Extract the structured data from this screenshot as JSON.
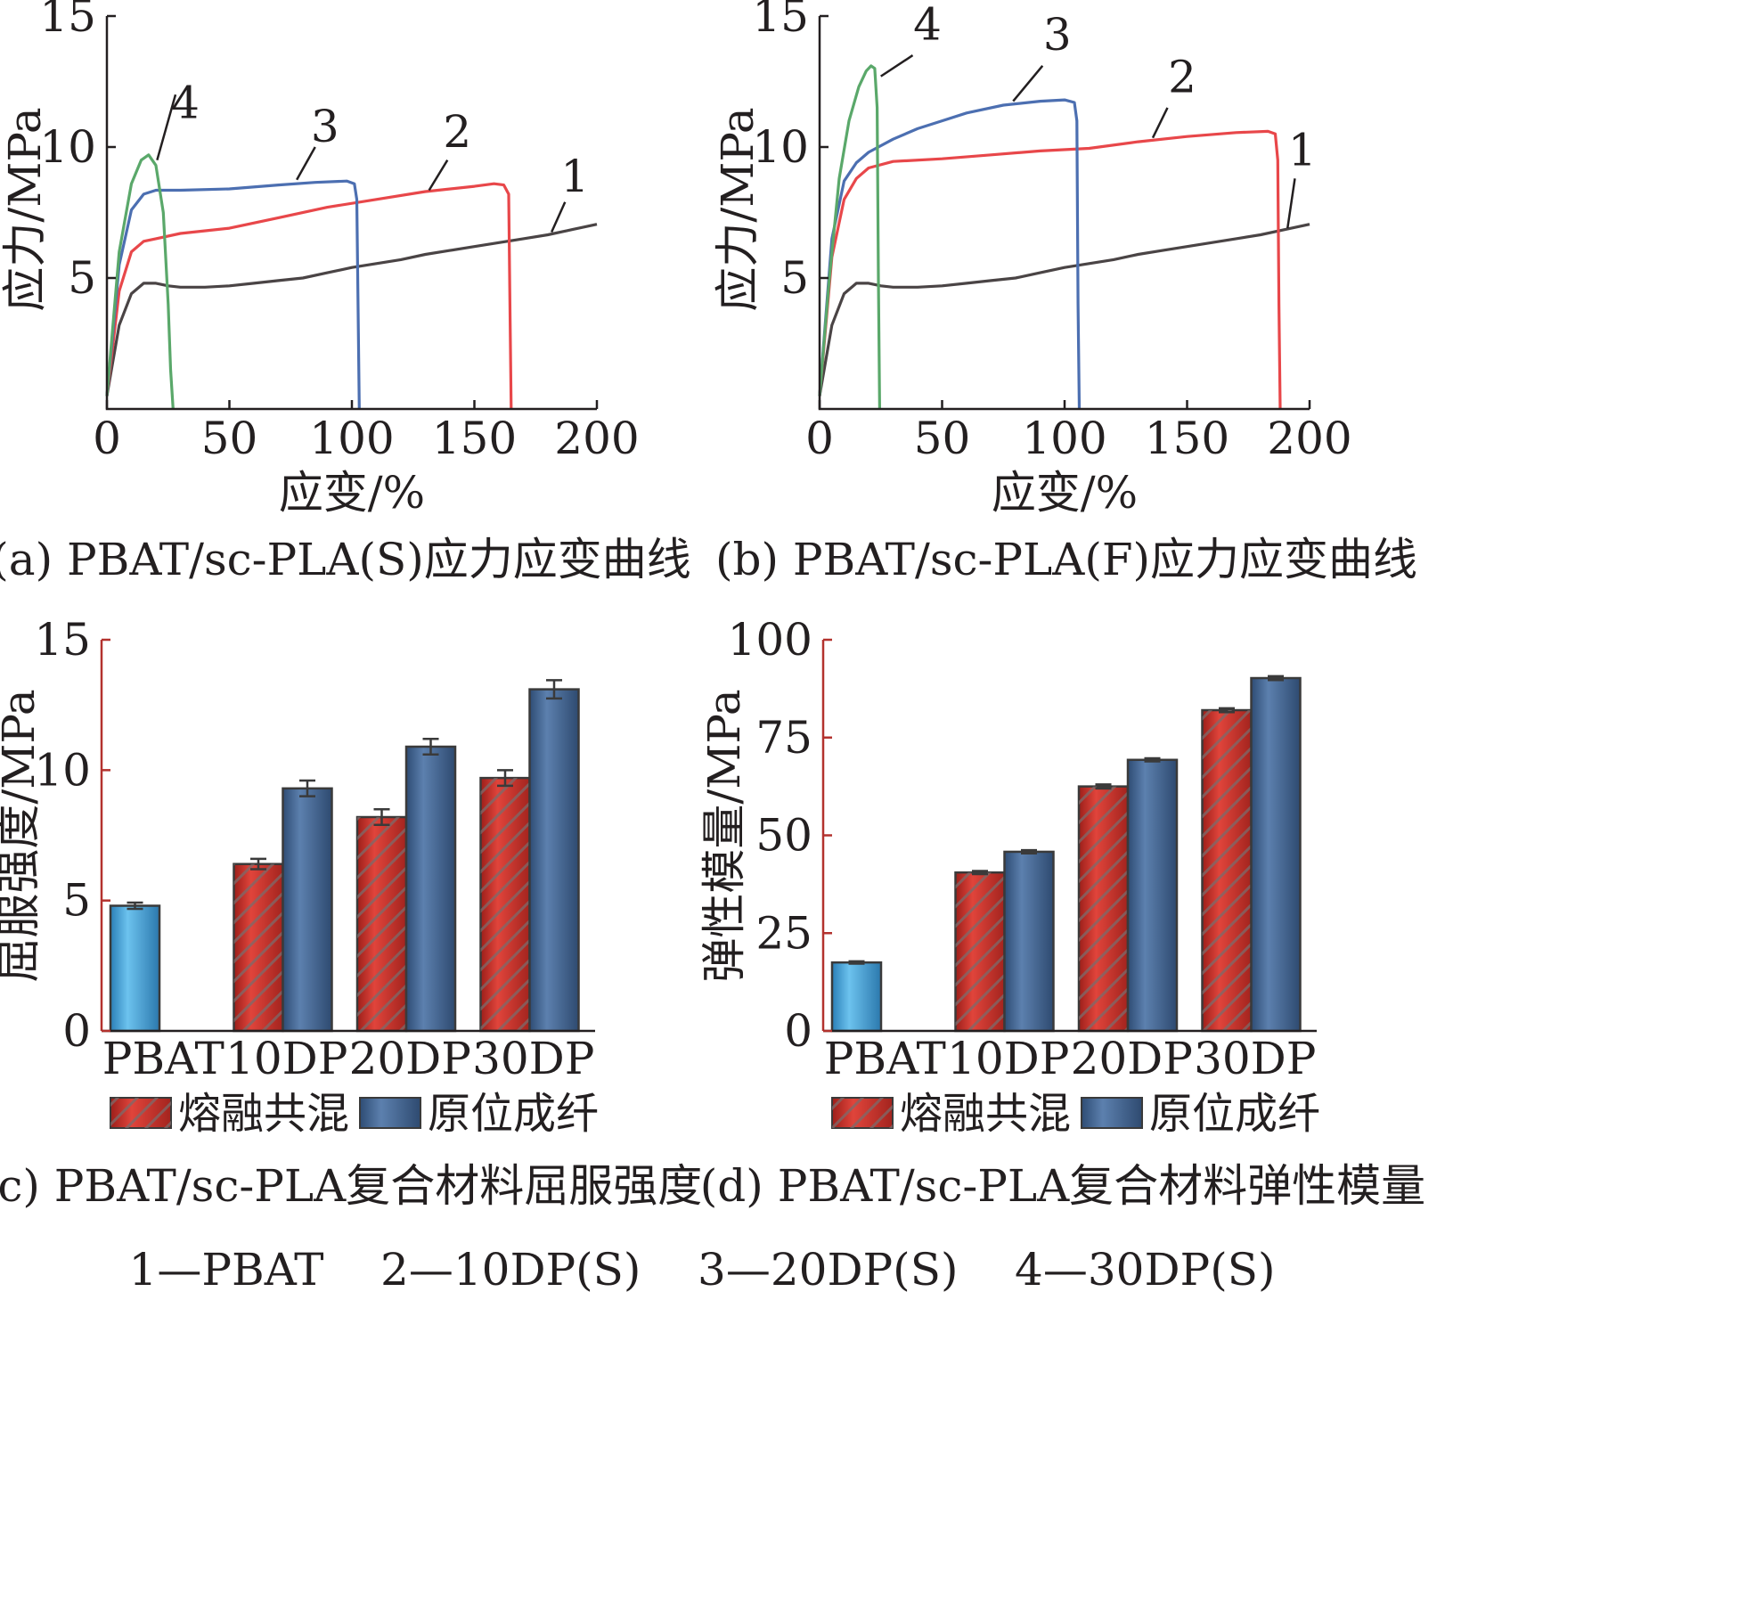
{
  "colors": {
    "axis_black": "#231f20",
    "axis_red": "#b3322e",
    "curve_1": "#4a4445",
    "curve_2": "#e8474a",
    "curve_3": "#4c6fb1",
    "curve_4": "#5aa86a",
    "bar_pbat": "#3f9bd0",
    "bar_melt": "#c63028",
    "bar_insitu": "#3b5f8f",
    "errorbar": "#3a3a3a"
  },
  "chart_data": [
    {
      "id": "a",
      "type": "line",
      "caption": "(a) PBAT/sc-PLA(S)应力应变曲线",
      "xlabel": "应变/%",
      "ylabel": "应力/MPa",
      "xlim": [
        0,
        200
      ],
      "ylim": [
        0,
        15
      ],
      "xticks": [
        "0",
        "50",
        "100",
        "150",
        "200"
      ],
      "yticks": [
        "5",
        "10",
        "15"
      ],
      "series": [
        {
          "label": "1",
          "color": "curve_1",
          "points": [
            [
              0,
              0.5
            ],
            [
              5,
              3.2
            ],
            [
              10,
              4.4
            ],
            [
              15,
              4.8
            ],
            [
              20,
              4.8
            ],
            [
              25,
              4.7
            ],
            [
              30,
              4.65
            ],
            [
              40,
              4.65
            ],
            [
              50,
              4.7
            ],
            [
              60,
              4.8
            ],
            [
              70,
              4.9
            ],
            [
              80,
              5.0
            ],
            [
              90,
              5.2
            ],
            [
              100,
              5.4
            ],
            [
              110,
              5.55
            ],
            [
              120,
              5.7
            ],
            [
              130,
              5.9
            ],
            [
              140,
              6.05
            ],
            [
              150,
              6.2
            ],
            [
              160,
              6.35
            ],
            [
              170,
              6.5
            ],
            [
              180,
              6.65
            ],
            [
              190,
              6.85
            ],
            [
              200,
              7.05
            ]
          ]
        },
        {
          "label": "2",
          "color": "curve_2",
          "points": [
            [
              0,
              0.5
            ],
            [
              5,
              4.5
            ],
            [
              10,
              6.0
            ],
            [
              15,
              6.4
            ],
            [
              20,
              6.5
            ],
            [
              30,
              6.7
            ],
            [
              50,
              6.9
            ],
            [
              70,
              7.3
            ],
            [
              90,
              7.7
            ],
            [
              110,
              8.0
            ],
            [
              130,
              8.3
            ],
            [
              150,
              8.5
            ],
            [
              158,
              8.6
            ],
            [
              162,
              8.55
            ],
            [
              164,
              8.2
            ],
            [
              164.5,
              4.0
            ],
            [
              165,
              0
            ]
          ]
        },
        {
          "label": "3",
          "color": "curve_3",
          "points": [
            [
              0,
              0.5
            ],
            [
              5,
              5.5
            ],
            [
              10,
              7.6
            ],
            [
              15,
              8.2
            ],
            [
              20,
              8.35
            ],
            [
              30,
              8.35
            ],
            [
              50,
              8.4
            ],
            [
              70,
              8.55
            ],
            [
              85,
              8.65
            ],
            [
              98,
              8.7
            ],
            [
              101,
              8.6
            ],
            [
              102,
              8.0
            ],
            [
              102.5,
              4.0
            ],
            [
              103,
              0
            ]
          ]
        },
        {
          "label": "4",
          "color": "curve_4",
          "points": [
            [
              0,
              0.5
            ],
            [
              5,
              6.0
            ],
            [
              10,
              8.6
            ],
            [
              14,
              9.5
            ],
            [
              17,
              9.7
            ],
            [
              20,
              9.3
            ],
            [
              23,
              7.5
            ],
            [
              25,
              4.0
            ],
            [
              26,
              1.5
            ],
            [
              27,
              0
            ]
          ]
        }
      ],
      "callouts": [
        {
          "label": "4",
          "x": 32,
          "y": 11.1,
          "tx": 28,
          "ty": 12.0,
          "ax": 20.5,
          "ay": 9.5
        },
        {
          "label": "3",
          "x": 89,
          "y": 10.2,
          "tx": 85,
          "ty": 10.0,
          "ax": 77.5,
          "ay": 8.75
        },
        {
          "label": "2",
          "x": 143,
          "y": 10.0,
          "tx": 139,
          "ty": 9.5,
          "ax": 131.5,
          "ay": 8.35
        },
        {
          "label": "1",
          "x": 191,
          "y": 8.3,
          "tx": 187,
          "ty": 7.9,
          "ax": 181.5,
          "ay": 6.75
        }
      ]
    },
    {
      "id": "b",
      "type": "line",
      "caption": "(b) PBAT/sc-PLA(F)应力应变曲线",
      "xlabel": "应变/%",
      "ylabel": "应力/MPa",
      "xlim": [
        0,
        200
      ],
      "ylim": [
        0,
        15
      ],
      "xticks": [
        "0",
        "50",
        "100",
        "150",
        "200"
      ],
      "yticks": [
        "5",
        "10",
        "15"
      ],
      "series": [
        {
          "label": "1",
          "color": "curve_1",
          "points": [
            [
              0,
              0.5
            ],
            [
              5,
              3.2
            ],
            [
              10,
              4.4
            ],
            [
              15,
              4.8
            ],
            [
              20,
              4.8
            ],
            [
              25,
              4.7
            ],
            [
              30,
              4.65
            ],
            [
              40,
              4.65
            ],
            [
              50,
              4.7
            ],
            [
              60,
              4.8
            ],
            [
              70,
              4.9
            ],
            [
              80,
              5.0
            ],
            [
              90,
              5.2
            ],
            [
              100,
              5.4
            ],
            [
              110,
              5.55
            ],
            [
              120,
              5.7
            ],
            [
              130,
              5.9
            ],
            [
              140,
              6.05
            ],
            [
              150,
              6.2
            ],
            [
              160,
              6.35
            ],
            [
              170,
              6.5
            ],
            [
              180,
              6.65
            ],
            [
              190,
              6.85
            ],
            [
              200,
              7.05
            ]
          ]
        },
        {
          "label": "2",
          "color": "curve_2",
          "points": [
            [
              0,
              0.5
            ],
            [
              5,
              5.8
            ],
            [
              10,
              8.0
            ],
            [
              15,
              8.8
            ],
            [
              20,
              9.2
            ],
            [
              30,
              9.45
            ],
            [
              50,
              9.55
            ],
            [
              70,
              9.7
            ],
            [
              90,
              9.85
            ],
            [
              110,
              9.95
            ],
            [
              130,
              10.2
            ],
            [
              150,
              10.4
            ],
            [
              170,
              10.55
            ],
            [
              183,
              10.6
            ],
            [
              186,
              10.5
            ],
            [
              187,
              9.5
            ],
            [
              187.5,
              4.0
            ],
            [
              188,
              0
            ]
          ]
        },
        {
          "label": "3",
          "color": "curve_3",
          "points": [
            [
              0,
              0.5
            ],
            [
              5,
              6.5
            ],
            [
              10,
              8.7
            ],
            [
              15,
              9.4
            ],
            [
              20,
              9.8
            ],
            [
              30,
              10.3
            ],
            [
              40,
              10.7
            ],
            [
              50,
              11.0
            ],
            [
              60,
              11.3
            ],
            [
              75,
              11.6
            ],
            [
              90,
              11.75
            ],
            [
              100,
              11.8
            ],
            [
              104,
              11.7
            ],
            [
              105,
              11.0
            ],
            [
              105.5,
              4.0
            ],
            [
              106,
              0
            ]
          ]
        },
        {
          "label": "4",
          "color": "curve_4",
          "points": [
            [
              0,
              0.5
            ],
            [
              4,
              5.0
            ],
            [
              8,
              8.8
            ],
            [
              12,
              11.0
            ],
            [
              16,
              12.3
            ],
            [
              19,
              12.9
            ],
            [
              21,
              13.1
            ],
            [
              22.5,
              13.0
            ],
            [
              23.5,
              11.5
            ],
            [
              24,
              5.0
            ],
            [
              24.5,
              0
            ]
          ]
        }
      ],
      "callouts": [
        {
          "label": "4",
          "x": 44,
          "y": 14.1,
          "tx": 38,
          "ty": 13.5,
          "ax": 25,
          "ay": 12.7
        },
        {
          "label": "3",
          "x": 97,
          "y": 13.7,
          "tx": 91,
          "ty": 13.1,
          "ax": 79,
          "ay": 11.75
        },
        {
          "label": "2",
          "x": 148,
          "y": 12.1,
          "tx": 142,
          "ty": 11.5,
          "ax": 136,
          "ay": 10.35
        },
        {
          "label": "1",
          "x": 197,
          "y": 9.3,
          "tx": 194,
          "ty": 8.8,
          "ax": 191,
          "ay": 6.9
        }
      ]
    },
    {
      "id": "c",
      "type": "bar",
      "caption": "(c) PBAT/sc-PLA复合材料屈服强度",
      "xlabel": "",
      "ylabel": "屈服强度/MPa",
      "ylim": [
        0,
        15
      ],
      "yticks": [
        "0",
        "5",
        "10",
        "15"
      ],
      "categories": [
        "PBAT",
        "10DP",
        "20DP",
        "30DP"
      ],
      "pbat": {
        "value": 4.8,
        "error": 0.12
      },
      "series": [
        {
          "name": "熔融共混",
          "color": "bar_melt",
          "hatched": true,
          "values": [
            null,
            6.4,
            8.2,
            9.7
          ],
          "errors": [
            null,
            0.2,
            0.3,
            0.3
          ]
        },
        {
          "name": "原位成纤",
          "color": "bar_insitu",
          "hatched": false,
          "values": [
            null,
            9.3,
            10.9,
            13.1
          ],
          "errors": [
            null,
            0.3,
            0.3,
            0.35
          ]
        }
      ]
    },
    {
      "id": "d",
      "type": "bar",
      "caption": "(d) PBAT/sc-PLA复合材料弹性模量",
      "xlabel": "",
      "ylabel": "弹性模量/MPa",
      "ylim": [
        0,
        100
      ],
      "yticks": [
        "0",
        "25",
        "50",
        "75",
        "100"
      ],
      "categories": [
        "PBAT",
        "10DP",
        "20DP",
        "30DP"
      ],
      "pbat": {
        "value": 17.5,
        "error": 0.3
      },
      "series": [
        {
          "name": "熔融共混",
          "color": "bar_melt",
          "hatched": true,
          "values": [
            null,
            40.5,
            62.5,
            82.0
          ],
          "errors": [
            null,
            0.4,
            0.5,
            0.5
          ]
        },
        {
          "name": "原位成纤",
          "color": "bar_insitu",
          "hatched": false,
          "values": [
            null,
            45.8,
            69.3,
            90.2
          ],
          "errors": [
            null,
            0.4,
            0.4,
            0.5
          ]
        }
      ]
    }
  ],
  "footnote": "1—PBAT    2—10DP(S)    3—20DP(S)    4—30DP(S)"
}
